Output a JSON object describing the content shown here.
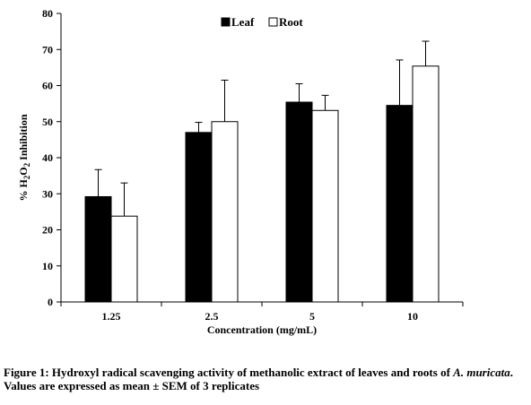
{
  "chart_data": {
    "type": "bar",
    "categories": [
      "1.25",
      "2.5",
      "5",
      "10"
    ],
    "series": [
      {
        "name": "Leaf",
        "values": [
          29.2,
          47.0,
          55.4,
          54.5
        ],
        "errors": [
          7.5,
          2.8,
          5.1,
          12.6
        ],
        "color": "#000000"
      },
      {
        "name": "Root",
        "values": [
          23.8,
          50.0,
          53.1,
          65.4
        ],
        "errors": [
          9.2,
          11.5,
          4.2,
          6.9
        ],
        "color": "#ffffff"
      }
    ],
    "ylim": [
      0,
      80
    ],
    "yticks": [
      "0",
      "10",
      "20",
      "30",
      "40",
      "50",
      "60",
      "70",
      "80"
    ],
    "xlabel": "Concentration (mg/mL)",
    "ylabel": {
      "prefix": "% H",
      "sub1": "2",
      "mid": "O",
      "sub2": "2",
      "suffix": " Inhibition"
    },
    "legend_position": "top-center",
    "grid": false
  },
  "caption": {
    "part1": "Figure 1: Hydroxyl radical scavenging activity of methanolic extract of leaves and roots of ",
    "species": "A. muricata",
    "part2": ". Values are expressed as mean ± SEM of 3 replicates"
  }
}
